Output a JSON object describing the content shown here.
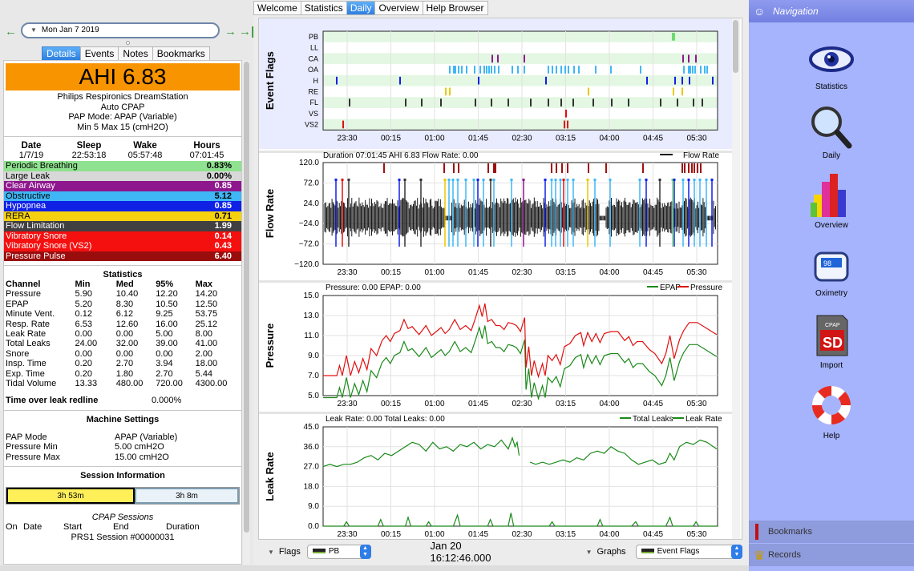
{
  "nav_tabs": [
    "Welcome",
    "Statistics",
    "Daily",
    "Overview",
    "Help Browser"
  ],
  "active_tab": "Daily",
  "date": {
    "value": "Mon Jan 7 2019"
  },
  "detail_tabs": [
    "Details",
    "Events",
    "Notes",
    "Bookmarks"
  ],
  "ahi_label": "AHI 6.83",
  "machine": {
    "name": "Philips Respironics DreamStation",
    "type": "Auto CPAP",
    "mode": "PAP Mode: APAP (Variable)",
    "range": "Min 5 Max 15 (cmH2O)"
  },
  "session_summary": {
    "headers": [
      "Date",
      "Sleep",
      "Wake",
      "Hours"
    ],
    "values": [
      "1/7/19",
      "22:53:18",
      "05:57:48",
      "07:01:45"
    ]
  },
  "events": [
    {
      "name": "Periodic Breathing",
      "value": "0.83%",
      "bg": "#8fe28f",
      "fg": "#000"
    },
    {
      "name": "Large Leak",
      "value": "0.00%",
      "bg": "#d8d8d8",
      "fg": "#000"
    },
    {
      "name": "Clear Airway",
      "value": "0.85",
      "bg": "#8e178e",
      "fg": "#fff"
    },
    {
      "name": "Obstructive",
      "value": "5.12",
      "bg": "#3fb7f6",
      "fg": "#000"
    },
    {
      "name": "Hypopnea",
      "value": "0.85",
      "bg": "#1021e6",
      "fg": "#fff"
    },
    {
      "name": "RERA",
      "value": "0.71",
      "bg": "#f6d10f",
      "fg": "#000"
    },
    {
      "name": "Flow Limitation",
      "value": "1.99",
      "bg": "#404040",
      "fg": "#fff"
    },
    {
      "name": "Vibratory Snore",
      "value": "0.14",
      "bg": "#f51010",
      "fg": "#fff"
    },
    {
      "name": "Vibratory Snore (VS2)",
      "value": "0.43",
      "bg": "#f51010",
      "fg": "#fff"
    },
    {
      "name": "Pressure Pulse",
      "value": "6.40",
      "bg": "#9a0d0d",
      "fg": "#fff"
    }
  ],
  "statistics": {
    "title": "Statistics",
    "headers": [
      "Channel",
      "Min",
      "Med",
      "95%",
      "Max"
    ],
    "rows": [
      [
        "Pressure",
        "5.90",
        "10.40",
        "12.20",
        "14.20"
      ],
      [
        "EPAP",
        "5.20",
        "8.30",
        "10.50",
        "12.50"
      ],
      [
        "Minute Vent.",
        "0.12",
        "6.12",
        "9.25",
        "53.75"
      ],
      [
        "Resp. Rate",
        "6.53",
        "12.60",
        "16.00",
        "25.12"
      ],
      [
        "Leak Rate",
        "0.00",
        "0.00",
        "5.00",
        "8.00"
      ],
      [
        "Total Leaks",
        "24.00",
        "32.00",
        "39.00",
        "41.00"
      ],
      [
        "Snore",
        "0.00",
        "0.00",
        "0.00",
        "2.00"
      ],
      [
        "Insp. Time",
        "0.20",
        "2.70",
        "3.94",
        "18.00"
      ],
      [
        "Exp. Time",
        "0.20",
        "1.80",
        "2.70",
        "5.44"
      ],
      [
        "Tidal Volume",
        "13.33",
        "480.00",
        "720.00",
        "4300.00"
      ]
    ],
    "leak_label": "Time over leak redline",
    "leak_value": "0.000%"
  },
  "machine_settings": {
    "title": "Machine Settings",
    "rows": [
      [
        "PAP Mode",
        "APAP (Variable)"
      ],
      [
        "Pressure Min",
        "5.00 cmH2O"
      ],
      [
        "Pressure Max",
        "15.00 cmH2O"
      ]
    ]
  },
  "session_info": {
    "title": "Session Information",
    "bar1": "3h 53m",
    "bar2": "3h 8m",
    "cpap_title": "CPAP Sessions",
    "headers": [
      "On",
      "Date",
      "Start",
      "End",
      "Duration"
    ],
    "session_line": "PRS1 Session #00000031"
  },
  "graphs": {
    "x_ticks": [
      "23:30",
      "00:15",
      "01:00",
      "01:45",
      "02:30",
      "03:15",
      "04:00",
      "04:45",
      "05:30"
    ],
    "event_flags": {
      "title": "Event Flags",
      "rows": [
        "PB",
        "LL",
        "CA",
        "OA",
        "H",
        "RE",
        "FL",
        "VS",
        "VS2"
      ]
    },
    "flow": {
      "title": "Flow Rate",
      "header": "Duration 07:01:45 AHI 6.83 Flow Rate: 0.00",
      "legend": "Flow Rate",
      "ticks": [
        "120.0",
        "72.0",
        "24.0",
        "−24.0",
        "−72.0",
        "−120.0"
      ]
    },
    "pressure": {
      "title": "Pressure",
      "header": "Pressure: 0.00 EPAP: 0.00",
      "legend": [
        "EPAP",
        "Pressure"
      ],
      "ticks": [
        "15.0",
        "13.0",
        "11.0",
        "9.0",
        "7.0",
        "5.0"
      ]
    },
    "leak": {
      "title": "Leak Rate",
      "header": "Leak Rate: 0.00 Total Leaks: 0.00",
      "legend": [
        "Total Leaks",
        "Leak Rate"
      ],
      "ticks": [
        "45.0",
        "36.0",
        "27.0",
        "18.0",
        "9.0",
        "0.0"
      ]
    }
  },
  "bottom": {
    "flags_label": "Flags",
    "flags_value": "PB",
    "timestamp": "Jan 20 16:12:46.000",
    "graphs_label": "Graphs",
    "graphs_value": "Event Flags"
  },
  "navigation": {
    "title": "Navigation",
    "items": [
      "Statistics",
      "Daily",
      "Overview",
      "Oximetry",
      "Import",
      "Help"
    ],
    "bookmarks": "Bookmarks",
    "records": "Records"
  },
  "colors": {
    "accent": "#2d7fe0",
    "ahi": "#f79400",
    "nav_bg": "#a6b4fd",
    "epap": "#1a8a1a",
    "pressure": "#e01010"
  }
}
